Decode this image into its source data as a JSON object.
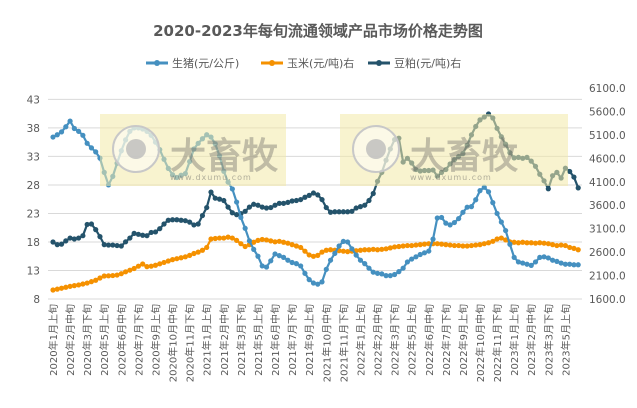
{
  "chart_data": {
    "type": "line",
    "title": "2020-2023年每旬流通领域产品市场价格走势图",
    "legend_position": "top",
    "grid": true,
    "left_axis": {
      "ylim": [
        8,
        45
      ],
      "ticks": [
        "43",
        "38",
        "33",
        "28",
        "23",
        "18",
        "13",
        "8"
      ]
    },
    "right_axis": {
      "ylim": [
        1600,
        6100
      ],
      "ticks": [
        "6100.0",
        "5600.0",
        "5100.0",
        "4600.0",
        "4100.0",
        "3600.0",
        "3100.0",
        "2600.0",
        "2100.0",
        "1600.0"
      ]
    },
    "tick_labels": [
      "2020年1月上旬",
      "2020年2月中旬",
      "2020年3月下旬",
      "2020年5月上旬",
      "2020年6月中旬",
      "2020年7月下旬",
      "2020年9月上旬",
      "2020年10月中旬",
      "2020年11月下旬",
      "2021年1月上旬",
      "2021年2月中旬",
      "2021年3月下旬",
      "2021年5月上旬",
      "2021年6月中旬",
      "2021年7月下旬",
      "2021年9月上旬",
      "2021年10月中旬",
      "2021年11月下旬",
      "2022年1月上旬",
      "2022年2月中旬",
      "2022年3月下旬",
      "2022年5月上旬",
      "2022年6月中旬",
      "2022年7月下旬",
      "2022年9月上旬",
      "2022年10月中旬",
      "2022年11月下旬",
      "2023年1月上旬",
      "2023年2月中旬",
      "2023年3月下旬",
      "2023年5月上旬"
    ],
    "tick_every": 4,
    "series": [
      {
        "name": "生猪(元/公斤)",
        "axis": "left",
        "color": "#4590c0",
        "values": [
          36.4,
          36.8,
          37.3,
          38.2,
          39.2,
          37.9,
          37.4,
          36.7,
          35.3,
          34.5,
          33.8,
          32.7,
          30.2,
          28,
          29.5,
          31.8,
          34,
          35.9,
          37.4,
          38,
          38,
          37.8,
          37.4,
          36.7,
          35.5,
          34.2,
          32.5,
          30.9,
          29.8,
          29.3,
          29.7,
          30,
          32.1,
          34.3,
          35.3,
          36.1,
          36.8,
          36.4,
          35.2,
          33.1,
          30.4,
          28.5,
          27.3,
          25,
          22.3,
          20.4,
          18.2,
          16.7,
          15.5,
          13.8,
          13.6,
          14.7,
          15.9,
          15.6,
          15.3,
          14.8,
          14.4,
          14.2,
          13.8,
          12.5,
          11.4,
          10.8,
          10.6,
          11,
          13.2,
          14.8,
          16,
          17.3,
          18.1,
          18,
          16.8,
          15.7,
          14.8,
          14.2,
          13.4,
          12.7,
          12.5,
          12.4,
          12.1,
          12.1,
          12.3,
          12.8,
          13.4,
          14.5,
          15,
          15.4,
          15.8,
          16.1,
          16.4,
          18.5,
          22.2,
          22.3,
          21.3,
          21,
          21.4,
          22.1,
          23.2,
          24.1,
          24.2,
          25.4,
          27,
          27.6,
          26.8,
          24.9,
          23,
          21.5,
          20,
          17.6,
          15.3,
          14.5,
          14.3,
          14.1,
          13.9,
          14.5,
          15.3,
          15.4,
          15.2,
          14.8,
          14.6,
          14.3,
          14.1,
          14.1,
          14,
          14
        ]
      },
      {
        "name": "玉米(元/吨)右",
        "axis": "right",
        "color": "#f59100",
        "values": [
          1792,
          1810,
          1830,
          1850,
          1870,
          1885,
          1900,
          1920,
          1940,
          1970,
          2000,
          2048,
          2090,
          2095,
          2100,
          2110,
          2140,
          2180,
          2215,
          2250,
          2300,
          2346,
          2290,
          2300,
          2320,
          2350,
          2380,
          2410,
          2440,
          2460,
          2480,
          2500,
          2530,
          2570,
          2600,
          2640,
          2700,
          2880,
          2890,
          2900,
          2900,
          2920,
          2900,
          2850,
          2780,
          2720,
          2760,
          2810,
          2850,
          2870,
          2860,
          2840,
          2820,
          2830,
          2810,
          2790,
          2760,
          2730,
          2700,
          2620,
          2540,
          2510,
          2530,
          2600,
          2640,
          2650,
          2640,
          2630,
          2620,
          2610,
          2620,
          2630,
          2640,
          2650,
          2650,
          2660,
          2650,
          2660,
          2670,
          2690,
          2710,
          2720,
          2730,
          2740,
          2740,
          2750,
          2760,
          2770,
          2780,
          2780,
          2780,
          2770,
          2760,
          2750,
          2740,
          2740,
          2730,
          2730,
          2740,
          2750,
          2760,
          2780,
          2800,
          2830,
          2880,
          2900,
          2860,
          2820,
          2810,
          2800,
          2810,
          2800,
          2800,
          2790,
          2800,
          2790,
          2780,
          2760,
          2740,
          2750,
          2740,
          2700,
          2680,
          2650
        ]
      },
      {
        "name": "豆粕(元/吨)右",
        "axis": "right",
        "color": "#24536b",
        "values": [
          2816,
          2760,
          2770,
          2840,
          2900,
          2880,
          2900,
          2950,
          3190,
          3200,
          3080,
          2930,
          2760,
          2750,
          2750,
          2740,
          2730,
          2820,
          2900,
          3000,
          2980,
          2960,
          2950,
          3020,
          3030,
          3100,
          3200,
          3280,
          3290,
          3290,
          3280,
          3270,
          3240,
          3180,
          3200,
          3380,
          3550,
          3880,
          3750,
          3730,
          3700,
          3560,
          3440,
          3400,
          3420,
          3470,
          3560,
          3620,
          3600,
          3560,
          3540,
          3550,
          3600,
          3640,
          3640,
          3660,
          3690,
          3700,
          3720,
          3770,
          3810,
          3860,
          3820,
          3720,
          3550,
          3450,
          3460,
          3460,
          3460,
          3460,
          3470,
          3540,
          3570,
          3600,
          3700,
          3850,
          4110,
          4300,
          4560,
          4800,
          5000,
          5030,
          4520,
          4600,
          4500,
          4360,
          4330,
          4340,
          4340,
          4350,
          4220,
          4300,
          4360,
          4480,
          4570,
          4640,
          4700,
          4880,
          5100,
          5280,
          5420,
          5480,
          5546,
          5460,
          5240,
          5060,
          4900,
          4720,
          4610,
          4620,
          4600,
          4620,
          4540,
          4430,
          4260,
          4120,
          3950,
          4230,
          4300,
          4180,
          4390,
          4320,
          4200,
          3970
        ]
      }
    ]
  },
  "watermark": {
    "brand": "大畜牧",
    "site": "www.dxumu.com"
  },
  "colors": {
    "grid": "#d9d9d9",
    "text": "#595959",
    "watermark_bg": "#f2e9a8"
  }
}
